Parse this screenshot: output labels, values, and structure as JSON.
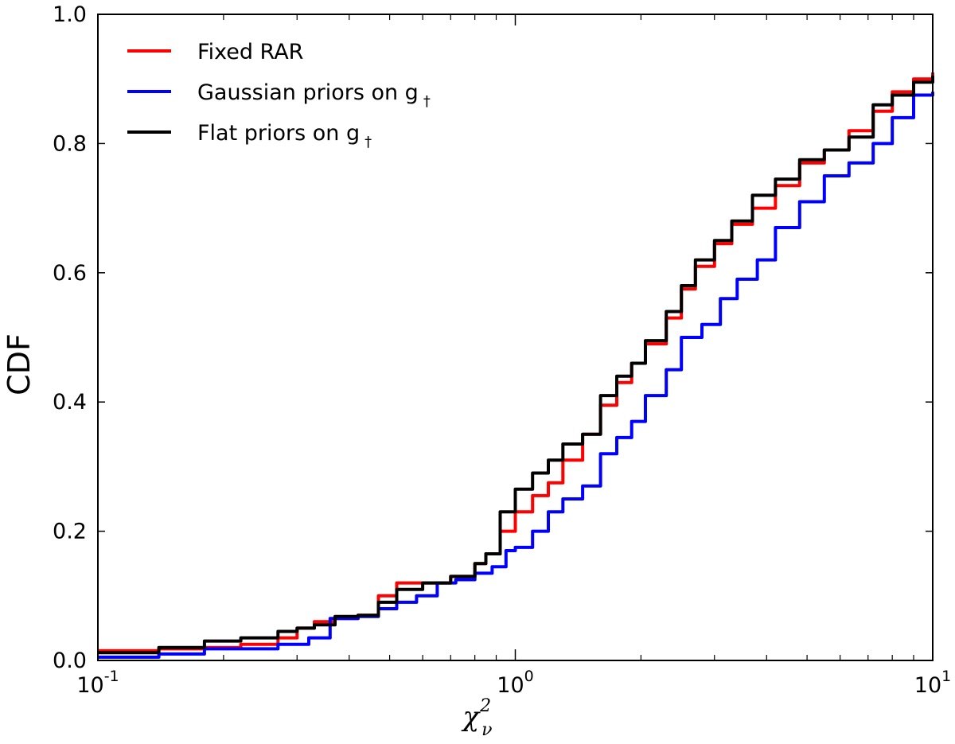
{
  "chart_data": {
    "type": "line",
    "x_scale": "log",
    "xlim": [
      0.1,
      10
    ],
    "ylim": [
      0.0,
      1.0
    ],
    "ylabel": "CDF",
    "xlabel": {
      "base": "χ",
      "sup": "2",
      "sub": "ν"
    },
    "x_ticks": [
      {
        "value": 0.1,
        "base": "10",
        "exp": "-1"
      },
      {
        "value": 1,
        "base": "10",
        "exp": "0"
      },
      {
        "value": 10,
        "base": "10",
        "exp": "1"
      }
    ],
    "y_ticks": [
      {
        "value": 0.0,
        "label": "0.0"
      },
      {
        "value": 0.2,
        "label": "0.2"
      },
      {
        "value": 0.4,
        "label": "0.4"
      },
      {
        "value": 0.6,
        "label": "0.6"
      },
      {
        "value": 0.8,
        "label": "0.8"
      },
      {
        "value": 1.0,
        "label": "1.0"
      }
    ],
    "legend_position": "top-left",
    "series": [
      {
        "name": "Fixed RAR",
        "legend_main": "Fixed RAR",
        "legend_sub": "",
        "color": "#ff0000",
        "x": [
          0.1,
          0.14,
          0.18,
          0.22,
          0.27,
          0.3,
          0.33,
          0.37,
          0.42,
          0.47,
          0.52,
          0.6,
          0.7,
          0.8,
          0.85,
          0.92,
          1.0,
          1.1,
          1.2,
          1.3,
          1.45,
          1.6,
          1.75,
          1.9,
          2.05,
          2.3,
          2.5,
          2.7,
          3.0,
          3.3,
          3.7,
          4.2,
          4.8,
          5.5,
          6.3,
          7.2,
          8.0,
          9.0,
          10.0
        ],
        "y": [
          0.015,
          0.018,
          0.02,
          0.025,
          0.035,
          0.05,
          0.06,
          0.065,
          0.07,
          0.1,
          0.12,
          0.12,
          0.13,
          0.15,
          0.165,
          0.2,
          0.23,
          0.255,
          0.275,
          0.31,
          0.35,
          0.395,
          0.43,
          0.46,
          0.49,
          0.53,
          0.575,
          0.61,
          0.645,
          0.675,
          0.7,
          0.735,
          0.77,
          0.79,
          0.82,
          0.85,
          0.88,
          0.9,
          0.91
        ]
      },
      {
        "name": "Gaussian priors on g",
        "legend_main": "Gaussian priors on g",
        "legend_sub": "†",
        "color": "#0000ff",
        "x": [
          0.1,
          0.14,
          0.18,
          0.22,
          0.27,
          0.32,
          0.36,
          0.42,
          0.47,
          0.52,
          0.58,
          0.65,
          0.72,
          0.8,
          0.88,
          0.95,
          1.0,
          1.1,
          1.2,
          1.3,
          1.45,
          1.6,
          1.75,
          1.9,
          2.05,
          2.3,
          2.5,
          2.8,
          3.1,
          3.4,
          3.8,
          4.2,
          4.8,
          5.5,
          6.3,
          7.2,
          8.0,
          9.0,
          10.0
        ],
        "y": [
          0.005,
          0.01,
          0.018,
          0.018,
          0.025,
          0.035,
          0.065,
          0.068,
          0.08,
          0.09,
          0.1,
          0.12,
          0.125,
          0.135,
          0.145,
          0.17,
          0.175,
          0.2,
          0.23,
          0.25,
          0.27,
          0.32,
          0.345,
          0.37,
          0.41,
          0.45,
          0.5,
          0.52,
          0.56,
          0.59,
          0.62,
          0.67,
          0.71,
          0.75,
          0.77,
          0.8,
          0.84,
          0.875,
          0.88
        ]
      },
      {
        "name": "Flat priors on g",
        "legend_main": "Flat priors on g",
        "legend_sub": "†",
        "color": "#000000",
        "x": [
          0.1,
          0.14,
          0.18,
          0.22,
          0.27,
          0.3,
          0.33,
          0.37,
          0.42,
          0.47,
          0.52,
          0.6,
          0.7,
          0.8,
          0.85,
          0.92,
          1.0,
          1.1,
          1.2,
          1.3,
          1.45,
          1.6,
          1.75,
          1.9,
          2.05,
          2.3,
          2.5,
          2.7,
          3.0,
          3.3,
          3.7,
          4.2,
          4.8,
          5.5,
          6.3,
          7.2,
          8.0,
          9.0,
          10.0
        ],
        "y": [
          0.012,
          0.02,
          0.03,
          0.035,
          0.045,
          0.05,
          0.055,
          0.068,
          0.07,
          0.09,
          0.11,
          0.12,
          0.13,
          0.15,
          0.165,
          0.23,
          0.265,
          0.29,
          0.31,
          0.335,
          0.35,
          0.41,
          0.44,
          0.46,
          0.495,
          0.54,
          0.58,
          0.62,
          0.65,
          0.68,
          0.72,
          0.745,
          0.775,
          0.79,
          0.81,
          0.86,
          0.875,
          0.895,
          0.905
        ]
      }
    ]
  }
}
